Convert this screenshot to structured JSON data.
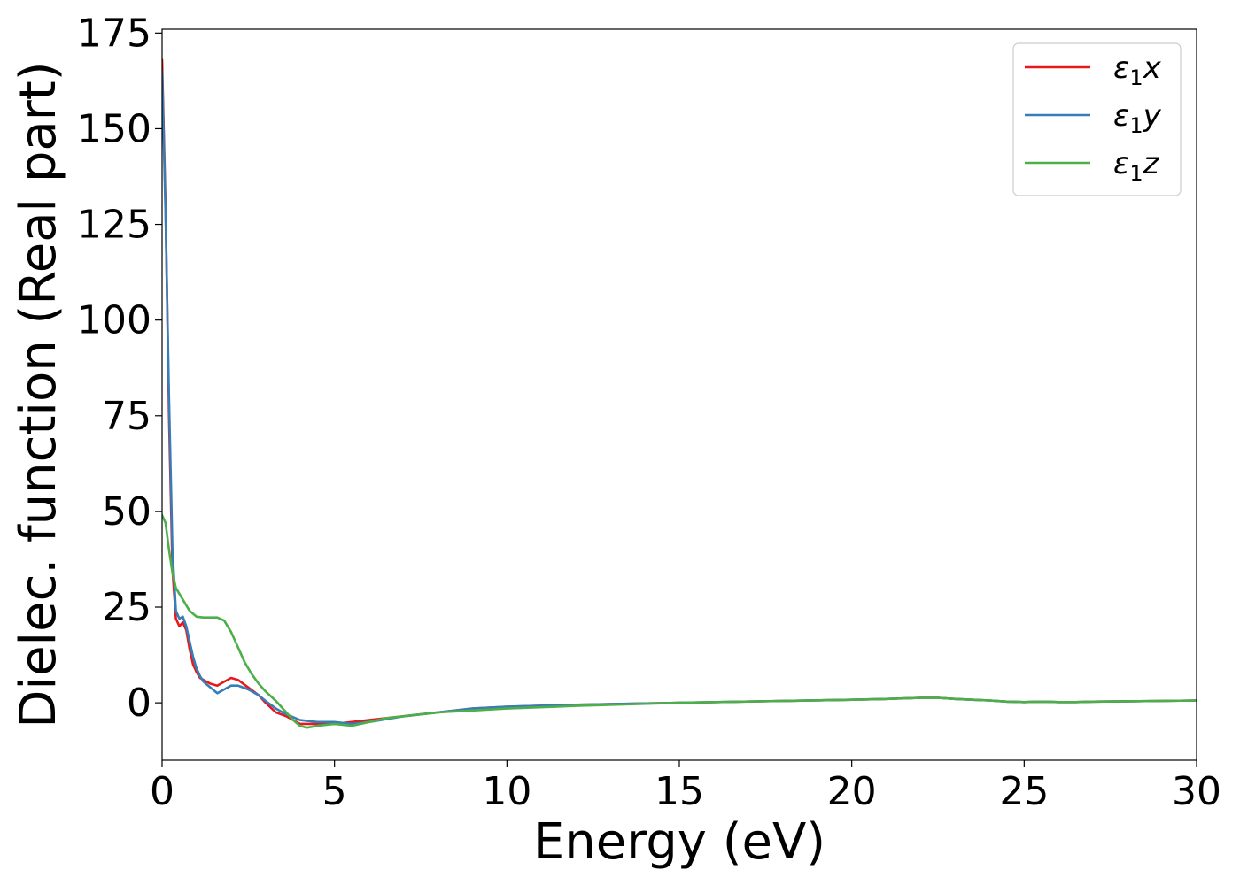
{
  "chart_data": {
    "type": "line",
    "title": "",
    "xlabel": "Energy (eV)",
    "ylabel": "Dielec. function (Real part)",
    "xlim": [
      0,
      30
    ],
    "ylim": [
      -15,
      176
    ],
    "xticks": [
      0,
      5,
      10,
      15,
      20,
      25,
      30
    ],
    "yticks": [
      0,
      25,
      50,
      75,
      100,
      125,
      150,
      175
    ],
    "grid": false,
    "legend_position": "top-right",
    "series": [
      {
        "name": "ε1x",
        "base": "ε",
        "sub": "1",
        "suffix": "x",
        "color": "#e41a1c",
        "x": [
          0,
          0.1,
          0.2,
          0.3,
          0.4,
          0.5,
          0.6,
          0.7,
          0.8,
          0.9,
          1.0,
          1.1,
          1.2,
          1.4,
          1.6,
          1.8,
          2.0,
          2.2,
          2.5,
          2.8,
          3.0,
          3.3,
          3.6,
          4.0,
          4.5,
          5.0,
          5.5,
          6.0,
          7.0,
          8.0,
          9.0,
          10.0,
          12.0,
          15.0,
          18.0,
          20.0,
          21.0,
          22.0,
          22.5,
          23.0,
          23.5,
          24.0,
          24.5,
          25.0,
          25.5,
          26.0,
          26.5,
          27.0,
          28.0,
          29.0,
          30.0
        ],
        "y": [
          168,
          130,
          75,
          35,
          22,
          20,
          21,
          19,
          14,
          10,
          8,
          6.5,
          6,
          5,
          4.5,
          5.5,
          6.5,
          6,
          4,
          2,
          0,
          -2.5,
          -3.5,
          -5.5,
          -5.5,
          -5.5,
          -5,
          -4.5,
          -3.5,
          -2.5,
          -1.5,
          -1.0,
          -0.5,
          0.0,
          0.5,
          0.8,
          1.0,
          1.3,
          1.3,
          1.0,
          0.8,
          0.6,
          0.3,
          0.2,
          0.3,
          0.2,
          0.2,
          0.3,
          0.4,
          0.5,
          0.6
        ]
      },
      {
        "name": "ε1y",
        "base": "ε",
        "sub": "1",
        "suffix": "y",
        "color": "#377eb8",
        "x": [
          0,
          0.1,
          0.2,
          0.3,
          0.4,
          0.5,
          0.6,
          0.7,
          0.8,
          0.9,
          1.0,
          1.1,
          1.2,
          1.4,
          1.6,
          1.8,
          2.0,
          2.2,
          2.5,
          2.8,
          3.0,
          3.3,
          3.6,
          4.0,
          4.5,
          5.0,
          5.5,
          6.0,
          7.0,
          8.0,
          9.0,
          10.0,
          12.0,
          15.0,
          18.0,
          20.0,
          21.0,
          22.0,
          22.5,
          23.0,
          23.5,
          24.0,
          24.5,
          25.0,
          25.5,
          26.0,
          26.5,
          27.0,
          28.0,
          29.0,
          30.0
        ],
        "y": [
          165,
          128,
          80,
          40,
          24,
          22,
          22.5,
          20,
          16,
          12,
          9,
          7,
          5.5,
          4,
          2.5,
          3.5,
          4.5,
          4.5,
          3.5,
          2,
          0.5,
          -1.5,
          -3,
          -4.5,
          -5,
          -5,
          -5.5,
          -5,
          -3.5,
          -2.5,
          -1.5,
          -1.0,
          -0.5,
          0.0,
          0.5,
          0.8,
          1.0,
          1.3,
          1.3,
          1.0,
          0.8,
          0.6,
          0.3,
          0.2,
          0.3,
          0.2,
          0.2,
          0.3,
          0.4,
          0.5,
          0.6
        ]
      },
      {
        "name": "ε1z",
        "base": "ε",
        "sub": "1",
        "suffix": "z",
        "color": "#4daf4a",
        "x": [
          0,
          0.1,
          0.2,
          0.3,
          0.4,
          0.6,
          0.8,
          1.0,
          1.2,
          1.4,
          1.6,
          1.8,
          2.0,
          2.2,
          2.4,
          2.6,
          2.8,
          3.0,
          3.3,
          3.6,
          3.8,
          4.0,
          4.2,
          4.5,
          5.0,
          5.5,
          6.0,
          6.5,
          7.0,
          8.0,
          9.0,
          10.0,
          12.0,
          15.0,
          18.0,
          20.0,
          21.0,
          22.0,
          22.5,
          23.0,
          23.5,
          24.0,
          24.5,
          25.0,
          25.5,
          26.0,
          26.5,
          27.0,
          28.0,
          29.0,
          30.0
        ],
        "y": [
          49,
          47,
          40,
          34,
          30,
          27,
          24,
          22.5,
          22.3,
          22.3,
          22.3,
          21.5,
          18.5,
          14.5,
          10.5,
          7.5,
          5,
          3,
          0.5,
          -2.5,
          -4.5,
          -6,
          -6.5,
          -6,
          -5.5,
          -6,
          -5,
          -4,
          -3.5,
          -2.5,
          -2,
          -1.5,
          -0.8,
          0.0,
          0.5,
          0.8,
          1.0,
          1.3,
          1.3,
          1.0,
          0.8,
          0.6,
          0.3,
          0.2,
          0.3,
          0.2,
          0.2,
          0.3,
          0.4,
          0.5,
          0.6
        ]
      }
    ]
  }
}
